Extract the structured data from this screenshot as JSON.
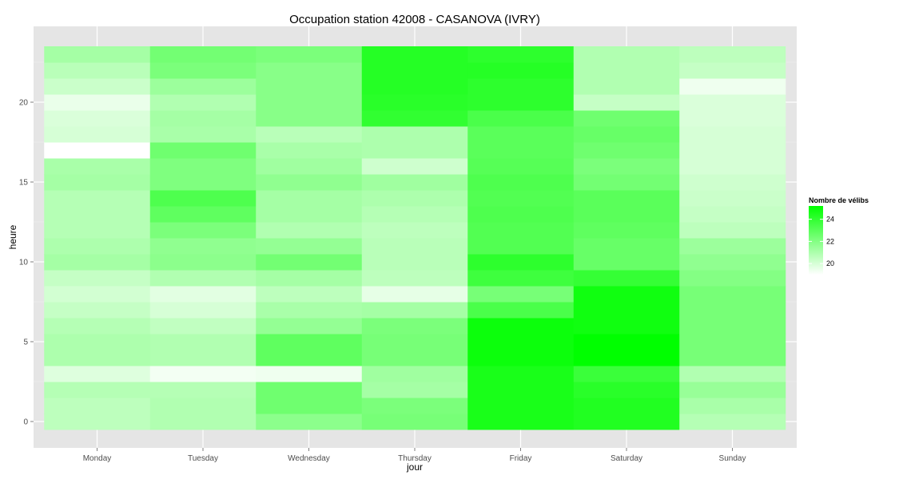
{
  "chart_data": {
    "type": "heatmap",
    "title": "Occupation station 42008 - CASANOVA (IVRY)",
    "xlabel": "jour",
    "ylabel": "heure",
    "categories": [
      "Monday",
      "Tuesday",
      "Wednesday",
      "Thursday",
      "Friday",
      "Saturday",
      "Sunday"
    ],
    "hours": [
      0,
      1,
      2,
      3,
      4,
      5,
      6,
      7,
      8,
      9,
      10,
      11,
      12,
      13,
      14,
      15,
      16,
      17,
      18,
      19,
      20,
      21,
      22,
      23
    ],
    "y_ticks": [
      0,
      5,
      10,
      15,
      20
    ],
    "ylim": [
      -0.5,
      23.5
    ],
    "values": [
      [
        20.6,
        20.9,
        21.8,
        22.3,
        24.6,
        24.4,
        20.8
      ],
      [
        20.6,
        20.9,
        22.5,
        22.2,
        24.6,
        24.4,
        21.1
      ],
      [
        20.8,
        20.8,
        22.5,
        21.2,
        24.6,
        24.2,
        21.5
      ],
      [
        19.8,
        19.3,
        19.4,
        21.3,
        24.6,
        23.8,
        20.9
      ],
      [
        21.0,
        20.9,
        22.9,
        22.3,
        24.9,
        25.2,
        22.3
      ],
      [
        21.0,
        20.9,
        22.9,
        22.3,
        24.9,
        25.2,
        22.3
      ],
      [
        20.8,
        20.5,
        21.6,
        22.2,
        24.9,
        24.8,
        22.3
      ],
      [
        20.4,
        20.0,
        21.1,
        21.2,
        23.4,
        24.8,
        22.3
      ],
      [
        20.1,
        19.7,
        20.6,
        19.6,
        22.3,
        24.8,
        22.3
      ],
      [
        20.4,
        20.9,
        21.2,
        20.6,
        23.7,
        23.9,
        22.0
      ],
      [
        21.2,
        21.8,
        22.4,
        20.7,
        24.1,
        22.7,
        21.7
      ],
      [
        21.0,
        21.7,
        21.6,
        20.7,
        23.2,
        22.7,
        21.4
      ],
      [
        20.8,
        22.2,
        20.9,
        20.6,
        23.2,
        22.9,
        20.6
      ],
      [
        20.8,
        22.9,
        21.2,
        20.8,
        23.3,
        23.0,
        20.4
      ],
      [
        20.8,
        23.3,
        21.2,
        21.0,
        23.2,
        23.0,
        20.3
      ],
      [
        21.2,
        22.1,
        21.7,
        21.3,
        23.3,
        22.4,
        20.2
      ],
      [
        21.1,
        22.1,
        21.3,
        20.2,
        23.1,
        22.2,
        20.0
      ],
      [
        19.0,
        22.5,
        21.1,
        21.0,
        23.0,
        22.5,
        20.0
      ],
      [
        20.0,
        21.1,
        20.7,
        21.0,
        23.0,
        22.7,
        20.0
      ],
      [
        19.9,
        21.2,
        21.9,
        24.0,
        23.4,
        22.5,
        19.9
      ],
      [
        19.5,
        20.9,
        21.9,
        24.2,
        24.1,
        20.4,
        19.9
      ],
      [
        20.3,
        21.4,
        21.9,
        24.3,
        24.1,
        20.9,
        19.4
      ],
      [
        20.7,
        22.2,
        21.9,
        24.3,
        24.3,
        20.9,
        20.4
      ],
      [
        21.2,
        22.4,
        22.2,
        24.3,
        24.1,
        20.9,
        20.6
      ]
    ],
    "color_low": "#ffffff",
    "color_high": "#00ff00",
    "value_range": [
      19.0,
      25.2
    ],
    "grid": true,
    "legend": {
      "title": "Nombre de vélibs",
      "ticks": [
        24,
        22,
        20
      ],
      "placement": "right"
    }
  }
}
